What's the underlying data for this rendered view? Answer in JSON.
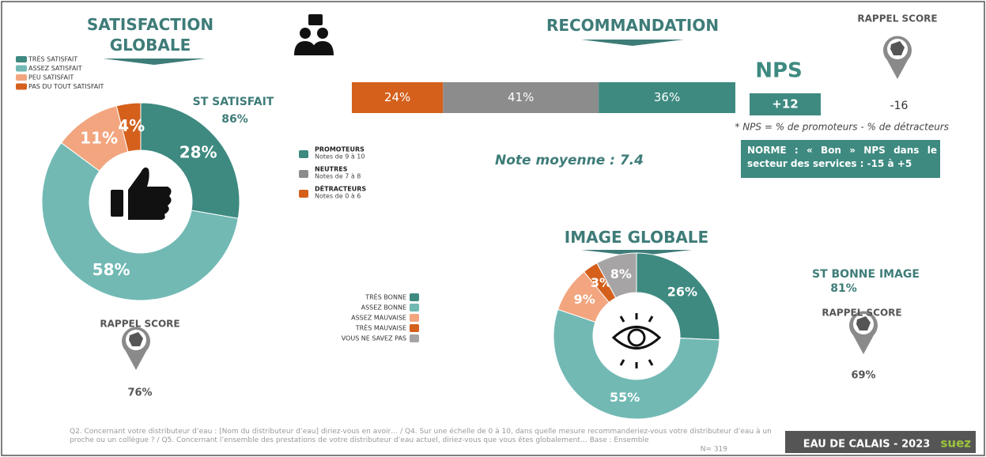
{
  "chart_data": [
    {
      "type": "donut",
      "title": "SATISFACTION GLOBALE",
      "categories": [
        "TRÈS SATISFAIT",
        "ASSEZ SATISFAIT",
        "PEU SATISFAIT",
        "PAS DU TOUT SATISFAIT"
      ],
      "values": [
        28,
        58,
        11,
        4
      ],
      "value_labels": [
        "28%",
        "58%",
        "11%",
        "4%"
      ],
      "colors": [
        "#3e8a80",
        "#72b9b4",
        "#f2a57e",
        "#d4601c"
      ],
      "subtotal": {
        "label": "ST SATISFAIT",
        "value": "86%"
      },
      "reminder": {
        "label": "RAPPEL SCORE",
        "value": "76%"
      }
    },
    {
      "type": "stacked-bar",
      "title": "RECOMMANDATION",
      "series": [
        {
          "name": "DÉTRACTEURS",
          "note": "Notes de 0 à 6",
          "color": "#d4601c",
          "values": [
            24
          ],
          "value_labels": [
            "24%"
          ]
        },
        {
          "name": "NEUTRES",
          "note": "Notes de 7 à 8",
          "color": "#8c8c8c",
          "values": [
            41
          ],
          "value_labels": [
            "41%"
          ]
        },
        {
          "name": "PROMOTEURS",
          "note": "Notes de 9 à 10",
          "color": "#3e8a80",
          "values": [
            36
          ],
          "value_labels": [
            "36%"
          ]
        }
      ],
      "mean": "Note moyenne : 7.4"
    },
    {
      "type": "donut",
      "title": "IMAGE GLOBALE",
      "categories": [
        "TRÈS BONNE",
        "ASSEZ BONNE",
        "ASSEZ MAUVAISE",
        "TRÈS MAUVAISE",
        "VOUS NE SAVEZ PAS"
      ],
      "values": [
        26,
        55,
        9,
        3,
        8
      ],
      "value_labels": [
        "26%",
        "55%",
        "9%",
        "3%",
        "8%"
      ],
      "colors": [
        "#3e8a80",
        "#72b9b4",
        "#f2a57e",
        "#d4601c",
        "#a6a4a4"
      ],
      "subtotal": {
        "label": "ST BONNE IMAGE",
        "value": "81%"
      },
      "reminder": {
        "label": "RAPPEL SCORE",
        "value": "69%"
      }
    }
  ],
  "nps": {
    "title": "NPS",
    "value": "+12",
    "reminder_label": "RAPPEL SCORE",
    "reminder": "-16",
    "definition": "* NPS = % de promoteurs - % de détracteurs",
    "norm": "NORME : « Bon » NPS dans le secteur des services : -15 à +5"
  },
  "footer": {
    "note": "Q2. Concernant votre distributeur d’eau : [Nom du distributeur d’eau] diriez-vous en avoir… / Q4. Sur une échelle de 0 à 10, dans quelle mesure recommanderiez-vous votre distributeur d’eau à un proche ou un collègue ? / Q5. Concernant l’ensemble des prestations de votre distributeur d’eau actuel, diriez-vous que vous êtes globalement… Base : Ensemble",
    "base": "N= 319",
    "brand": "EAU DE CALAIS - 2023",
    "logo": "suez"
  }
}
